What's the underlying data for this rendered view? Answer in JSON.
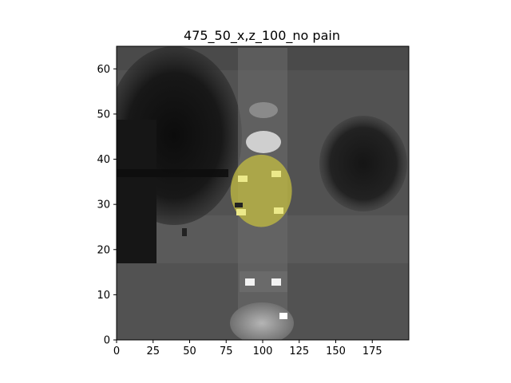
{
  "chart_data": {
    "type": "heatmap",
    "title": "475_50_x,z_100_no pain",
    "xlabel": "",
    "ylabel": "",
    "xlim": [
      0,
      200
    ],
    "ylim": [
      0,
      65
    ],
    "x_ticks": [
      0,
      25,
      50,
      75,
      100,
      125,
      150,
      175
    ],
    "y_ticks": [
      0,
      10,
      20,
      30,
      40,
      50,
      60
    ],
    "x_tick_labels": [
      "0",
      "25",
      "50",
      "75",
      "100",
      "125",
      "150",
      "175"
    ],
    "y_tick_labels": [
      "0",
      "10",
      "20",
      "30",
      "40",
      "50",
      "60"
    ],
    "colormap": "gray",
    "overlay": {
      "label": "segmentation mask",
      "color": "#c8c040",
      "center_x": 99,
      "center_y": 33,
      "half_width_x": 21,
      "half_height_y": 8
    },
    "colors": {
      "background": "#555555",
      "dark_region": "#1a1a1a",
      "bright_structure": "#dcdcdc"
    }
  }
}
